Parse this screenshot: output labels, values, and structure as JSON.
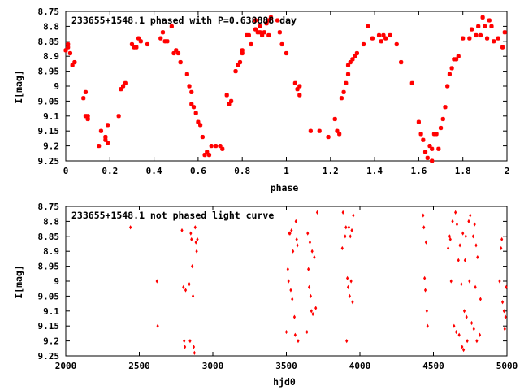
{
  "chart_data": [
    {
      "type": "scatter",
      "title": "233655+1548.1 phased with P=0.638888 day",
      "xlabel": "phase",
      "ylabel": "I[mag]",
      "xlim": [
        0,
        2
      ],
      "ylim": [
        9.25,
        8.75
      ],
      "xticks": [
        "0",
        "0.2",
        "0.4",
        "0.6",
        "0.8",
        "1",
        "1.2",
        "1.4",
        "1.6",
        "1.8",
        "2"
      ],
      "yticks": [
        "8.75",
        "8.8",
        "8.85",
        "8.9",
        "8.95",
        "9",
        "9.05",
        "9.1",
        "9.15",
        "9.2",
        "9.25"
      ],
      "marker_color": "#ff0000",
      "marker": "plus-x",
      "points": [
        [
          0.0,
          8.88
        ],
        [
          0.01,
          8.86
        ],
        [
          0.01,
          8.87
        ],
        [
          0.02,
          8.89
        ],
        [
          0.03,
          8.93
        ],
        [
          0.04,
          8.92
        ],
        [
          0.08,
          9.04
        ],
        [
          0.09,
          9.02
        ],
        [
          0.09,
          9.1
        ],
        [
          0.1,
          9.1
        ],
        [
          0.1,
          9.11
        ],
        [
          0.15,
          9.2
        ],
        [
          0.16,
          9.15
        ],
        [
          0.18,
          9.17
        ],
        [
          0.18,
          9.18
        ],
        [
          0.19,
          9.19
        ],
        [
          0.19,
          9.13
        ],
        [
          0.24,
          9.1
        ],
        [
          0.25,
          9.01
        ],
        [
          0.26,
          9.0
        ],
        [
          0.27,
          8.99
        ],
        [
          0.3,
          8.86
        ],
        [
          0.31,
          8.87
        ],
        [
          0.32,
          8.87
        ],
        [
          0.33,
          8.84
        ],
        [
          0.34,
          8.85
        ],
        [
          0.37,
          8.86
        ],
        [
          0.43,
          8.84
        ],
        [
          0.44,
          8.82
        ],
        [
          0.45,
          8.85
        ],
        [
          0.46,
          8.85
        ],
        [
          0.48,
          8.8
        ],
        [
          0.49,
          8.89
        ],
        [
          0.5,
          8.88
        ],
        [
          0.51,
          8.89
        ],
        [
          0.52,
          8.92
        ],
        [
          0.55,
          8.96
        ],
        [
          0.56,
          9.0
        ],
        [
          0.57,
          9.02
        ],
        [
          0.57,
          9.06
        ],
        [
          0.58,
          9.07
        ],
        [
          0.59,
          9.09
        ],
        [
          0.6,
          9.12
        ],
        [
          0.61,
          9.13
        ],
        [
          0.62,
          9.17
        ],
        [
          0.63,
          9.23
        ],
        [
          0.64,
          9.22
        ],
        [
          0.65,
          9.23
        ],
        [
          0.66,
          9.2
        ],
        [
          0.68,
          9.2
        ],
        [
          0.7,
          9.2
        ],
        [
          0.71,
          9.21
        ],
        [
          0.73,
          9.03
        ],
        [
          0.74,
          9.06
        ],
        [
          0.75,
          9.05
        ],
        [
          0.77,
          8.95
        ],
        [
          0.78,
          8.93
        ],
        [
          0.79,
          8.92
        ],
        [
          0.8,
          8.89
        ],
        [
          0.8,
          8.88
        ],
        [
          0.82,
          8.83
        ],
        [
          0.83,
          8.83
        ],
        [
          0.84,
          8.86
        ],
        [
          0.86,
          8.81
        ],
        [
          0.86,
          8.78
        ],
        [
          0.87,
          8.82
        ],
        [
          0.88,
          8.82
        ],
        [
          0.88,
          8.8
        ],
        [
          0.89,
          8.83
        ],
        [
          0.9,
          8.82
        ],
        [
          0.91,
          8.79
        ],
        [
          0.92,
          8.78
        ],
        [
          0.92,
          8.83
        ],
        [
          0.93,
          8.77
        ],
        [
          0.96,
          8.78
        ],
        [
          0.97,
          8.82
        ],
        [
          0.98,
          8.86
        ],
        [
          1.0,
          8.89
        ],
        [
          1.04,
          8.99
        ],
        [
          1.05,
          9.01
        ],
        [
          1.06,
          9.0
        ],
        [
          1.06,
          9.03
        ],
        [
          1.11,
          9.15
        ],
        [
          1.15,
          9.15
        ],
        [
          1.19,
          9.17
        ],
        [
          1.22,
          9.11
        ],
        [
          1.23,
          9.15
        ],
        [
          1.24,
          9.16
        ],
        [
          1.25,
          9.04
        ],
        [
          1.26,
          9.02
        ],
        [
          1.27,
          8.99
        ],
        [
          1.28,
          8.96
        ],
        [
          1.28,
          8.93
        ],
        [
          1.29,
          8.92
        ],
        [
          1.3,
          8.91
        ],
        [
          1.31,
          8.9
        ],
        [
          1.32,
          8.89
        ],
        [
          1.35,
          8.86
        ],
        [
          1.37,
          8.8
        ],
        [
          1.39,
          8.84
        ],
        [
          1.42,
          8.83
        ],
        [
          1.43,
          8.85
        ],
        [
          1.44,
          8.83
        ],
        [
          1.45,
          8.84
        ],
        [
          1.47,
          8.83
        ],
        [
          1.5,
          8.86
        ],
        [
          1.52,
          8.92
        ],
        [
          1.57,
          8.99
        ],
        [
          1.6,
          9.12
        ],
        [
          1.61,
          9.16
        ],
        [
          1.62,
          9.18
        ],
        [
          1.63,
          9.22
        ],
        [
          1.64,
          9.24
        ],
        [
          1.65,
          9.2
        ],
        [
          1.66,
          9.21
        ],
        [
          1.66,
          9.25
        ],
        [
          1.67,
          9.16
        ],
        [
          1.68,
          9.16
        ],
        [
          1.69,
          9.21
        ],
        [
          1.7,
          9.14
        ],
        [
          1.71,
          9.11
        ],
        [
          1.72,
          9.07
        ],
        [
          1.73,
          9.0
        ],
        [
          1.74,
          8.96
        ],
        [
          1.75,
          8.94
        ],
        [
          1.76,
          8.91
        ],
        [
          1.77,
          8.91
        ],
        [
          1.78,
          8.9
        ],
        [
          1.8,
          8.84
        ],
        [
          1.83,
          8.84
        ],
        [
          1.84,
          8.81
        ],
        [
          1.86,
          8.83
        ],
        [
          1.87,
          8.8
        ],
        [
          1.88,
          8.83
        ],
        [
          1.89,
          8.77
        ],
        [
          1.9,
          8.8
        ],
        [
          1.91,
          8.84
        ],
        [
          1.92,
          8.78
        ],
        [
          1.93,
          8.8
        ],
        [
          1.94,
          8.85
        ],
        [
          1.96,
          8.84
        ],
        [
          1.98,
          8.87
        ],
        [
          1.99,
          8.82
        ]
      ]
    },
    {
      "type": "scatter",
      "title": "233655+1548.1 not phased light curve",
      "xlabel": "hjd0",
      "ylabel": "I[mag]",
      "xlim": [
        2000,
        5000
      ],
      "ylim": [
        9.25,
        8.75
      ],
      "xticks": [
        "2000",
        "2500",
        "3000",
        "3500",
        "4000",
        "4500",
        "5000"
      ],
      "yticks": [
        "8.75",
        "8.8",
        "8.85",
        "8.9",
        "8.95",
        "9",
        "9.05",
        "9.1",
        "9.15",
        "9.2",
        "9.25"
      ],
      "marker_color": "#ff0000",
      "marker": "diamond",
      "points": [
        [
          2440,
          8.82
        ],
        [
          2620,
          9.0
        ],
        [
          2625,
          9.15
        ],
        [
          2790,
          8.83
        ],
        [
          2800,
          9.02
        ],
        [
          2805,
          9.2
        ],
        [
          2810,
          9.22
        ],
        [
          2815,
          9.03
        ],
        [
          2840,
          9.01
        ],
        [
          2845,
          9.2
        ],
        [
          2850,
          8.84
        ],
        [
          2855,
          8.86
        ],
        [
          2860,
          8.95
        ],
        [
          2865,
          9.05
        ],
        [
          2870,
          9.22
        ],
        [
          2875,
          9.24
        ],
        [
          2880,
          8.82
        ],
        [
          2885,
          8.87
        ],
        [
          2890,
          8.9
        ],
        [
          2895,
          8.86
        ],
        [
          3500,
          9.17
        ],
        [
          3510,
          8.96
        ],
        [
          3515,
          9.0
        ],
        [
          3520,
          8.84
        ],
        [
          3525,
          8.84
        ],
        [
          3530,
          9.03
        ],
        [
          3535,
          8.83
        ],
        [
          3540,
          9.06
        ],
        [
          3545,
          8.9
        ],
        [
          3555,
          9.12
        ],
        [
          3560,
          9.18
        ],
        [
          3565,
          8.8
        ],
        [
          3570,
          8.86
        ],
        [
          3575,
          8.88
        ],
        [
          3580,
          9.2
        ],
        [
          3640,
          9.17
        ],
        [
          3645,
          8.84
        ],
        [
          3650,
          8.96
        ],
        [
          3655,
          9.02
        ],
        [
          3660,
          8.87
        ],
        [
          3665,
          9.05
        ],
        [
          3670,
          9.1
        ],
        [
          3675,
          8.9
        ],
        [
          3680,
          9.11
        ],
        [
          3690,
          8.92
        ],
        [
          3700,
          9.09
        ],
        [
          3710,
          8.77
        ],
        [
          3880,
          8.89
        ],
        [
          3885,
          8.77
        ],
        [
          3900,
          8.85
        ],
        [
          3905,
          8.82
        ],
        [
          3910,
          9.2
        ],
        [
          3915,
          8.99
        ],
        [
          3920,
          9.02
        ],
        [
          3925,
          8.82
        ],
        [
          3930,
          9.05
        ],
        [
          3935,
          8.85
        ],
        [
          3940,
          9.0
        ],
        [
          3945,
          8.83
        ],
        [
          3950,
          9.07
        ],
        [
          3955,
          8.78
        ],
        [
          4430,
          8.78
        ],
        [
          4435,
          8.82
        ],
        [
          4440,
          8.99
        ],
        [
          4445,
          9.03
        ],
        [
          4450,
          8.87
        ],
        [
          4455,
          9.1
        ],
        [
          4460,
          9.15
        ],
        [
          4600,
          8.89
        ],
        [
          4610,
          8.85
        ],
        [
          4615,
          8.86
        ],
        [
          4620,
          9.0
        ],
        [
          4630,
          8.8
        ],
        [
          4640,
          9.15
        ],
        [
          4650,
          8.77
        ],
        [
          4655,
          9.17
        ],
        [
          4660,
          8.81
        ],
        [
          4670,
          8.93
        ],
        [
          4675,
          9.18
        ],
        [
          4680,
          8.88
        ],
        [
          4690,
          9.01
        ],
        [
          4695,
          9.22
        ],
        [
          4700,
          8.84
        ],
        [
          4705,
          9.23
        ],
        [
          4710,
          9.1
        ],
        [
          4715,
          8.93
        ],
        [
          4720,
          8.85
        ],
        [
          4725,
          9.12
        ],
        [
          4730,
          9.2
        ],
        [
          4740,
          8.8
        ],
        [
          4745,
          9.0
        ],
        [
          4750,
          8.78
        ],
        [
          4760,
          9.14
        ],
        [
          4770,
          8.85
        ],
        [
          4775,
          9.16
        ],
        [
          4780,
          8.81
        ],
        [
          4785,
          9.02
        ],
        [
          4790,
          8.88
        ],
        [
          4795,
          9.2
        ],
        [
          4800,
          8.92
        ],
        [
          4815,
          9.18
        ],
        [
          4820,
          9.06
        ],
        [
          4950,
          9.0
        ],
        [
          4960,
          8.89
        ],
        [
          4965,
          8.86
        ],
        [
          4970,
          9.07
        ],
        [
          4980,
          9.1
        ],
        [
          4985,
          9.16
        ],
        [
          4990,
          9.12
        ],
        [
          4995,
          9.02
        ]
      ]
    }
  ]
}
